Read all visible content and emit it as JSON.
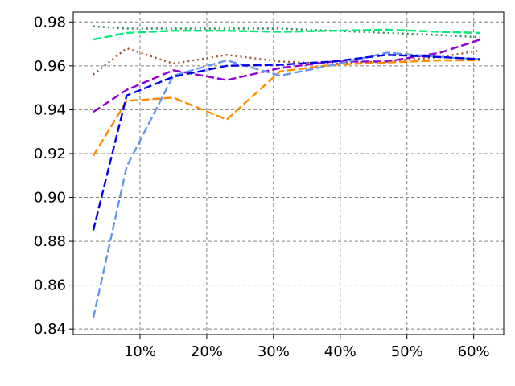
{
  "chart_data": {
    "type": "line",
    "title": "",
    "xlabel": "",
    "ylabel": "",
    "xlim": [
      0.0,
      0.645
    ],
    "ylim": [
      0.8375,
      0.9845
    ],
    "grid": true,
    "x_ticks": [
      {
        "value": 0.1,
        "label": "10%"
      },
      {
        "value": 0.2,
        "label": "20%"
      },
      {
        "value": 0.3,
        "label": "30%"
      },
      {
        "value": 0.4,
        "label": "40%"
      },
      {
        "value": 0.5,
        "label": "50%"
      },
      {
        "value": 0.6,
        "label": "60%"
      }
    ],
    "y_ticks": [
      {
        "value": 0.84,
        "label": "0.84"
      },
      {
        "value": 0.86,
        "label": "0.86"
      },
      {
        "value": 0.88,
        "label": "0.88"
      },
      {
        "value": 0.9,
        "label": "0.90"
      },
      {
        "value": 0.92,
        "label": "0.92"
      },
      {
        "value": 0.94,
        "label": "0.94"
      },
      {
        "value": 0.96,
        "label": "0.96"
      },
      {
        "value": 0.98,
        "label": "0.98"
      }
    ],
    "series": [
      {
        "color": "#2e8b57",
        "dash": "2,4",
        "x": [
          0.03,
          0.08,
          0.15,
          0.23,
          0.31,
          0.39,
          0.47,
          0.55,
          0.61
        ],
        "y": [
          0.978,
          0.977,
          0.977,
          0.977,
          0.977,
          0.976,
          0.975,
          0.974,
          0.973
        ]
      },
      {
        "color": "#00ee76",
        "dash": "10,4",
        "x": [
          0.03,
          0.08,
          0.15,
          0.23,
          0.31,
          0.39,
          0.47,
          0.55,
          0.61
        ],
        "y": [
          0.972,
          0.975,
          0.976,
          0.976,
          0.9755,
          0.976,
          0.9765,
          0.9755,
          0.975
        ]
      },
      {
        "color": "#a0522d",
        "dash": "2,4",
        "x": [
          0.03,
          0.08,
          0.15,
          0.23,
          0.31,
          0.39,
          0.47,
          0.55,
          0.61
        ],
        "y": [
          0.956,
          0.968,
          0.961,
          0.965,
          0.962,
          0.961,
          0.962,
          0.964,
          0.967
        ]
      },
      {
        "color": "#9400d3",
        "dash": "10,4",
        "x": [
          0.03,
          0.08,
          0.15,
          0.23,
          0.31,
          0.39,
          0.47,
          0.55,
          0.61
        ],
        "y": [
          0.939,
          0.949,
          0.958,
          0.9535,
          0.959,
          0.962,
          0.962,
          0.966,
          0.972
        ]
      },
      {
        "color": "#ff8c00",
        "dash": "10,4",
        "x": [
          0.03,
          0.08,
          0.15,
          0.23,
          0.31,
          0.39,
          0.47,
          0.55,
          0.61
        ],
        "y": [
          0.919,
          0.944,
          0.9455,
          0.9355,
          0.9575,
          0.9605,
          0.9615,
          0.9625,
          0.9625
        ]
      },
      {
        "color": "#6495ed",
        "dash": "10,4",
        "x": [
          0.03,
          0.08,
          0.15,
          0.23,
          0.31,
          0.39,
          0.47,
          0.55,
          0.61
        ],
        "y": [
          0.845,
          0.914,
          0.9555,
          0.9625,
          0.9555,
          0.9605,
          0.966,
          0.964,
          0.963
        ]
      },
      {
        "color": "#0000ee",
        "dash": "10,4",
        "x": [
          0.03,
          0.08,
          0.15,
          0.23,
          0.31,
          0.39,
          0.47,
          0.55,
          0.61
        ],
        "y": [
          0.885,
          0.9465,
          0.955,
          0.96,
          0.9605,
          0.962,
          0.965,
          0.964,
          0.963
        ]
      }
    ]
  }
}
